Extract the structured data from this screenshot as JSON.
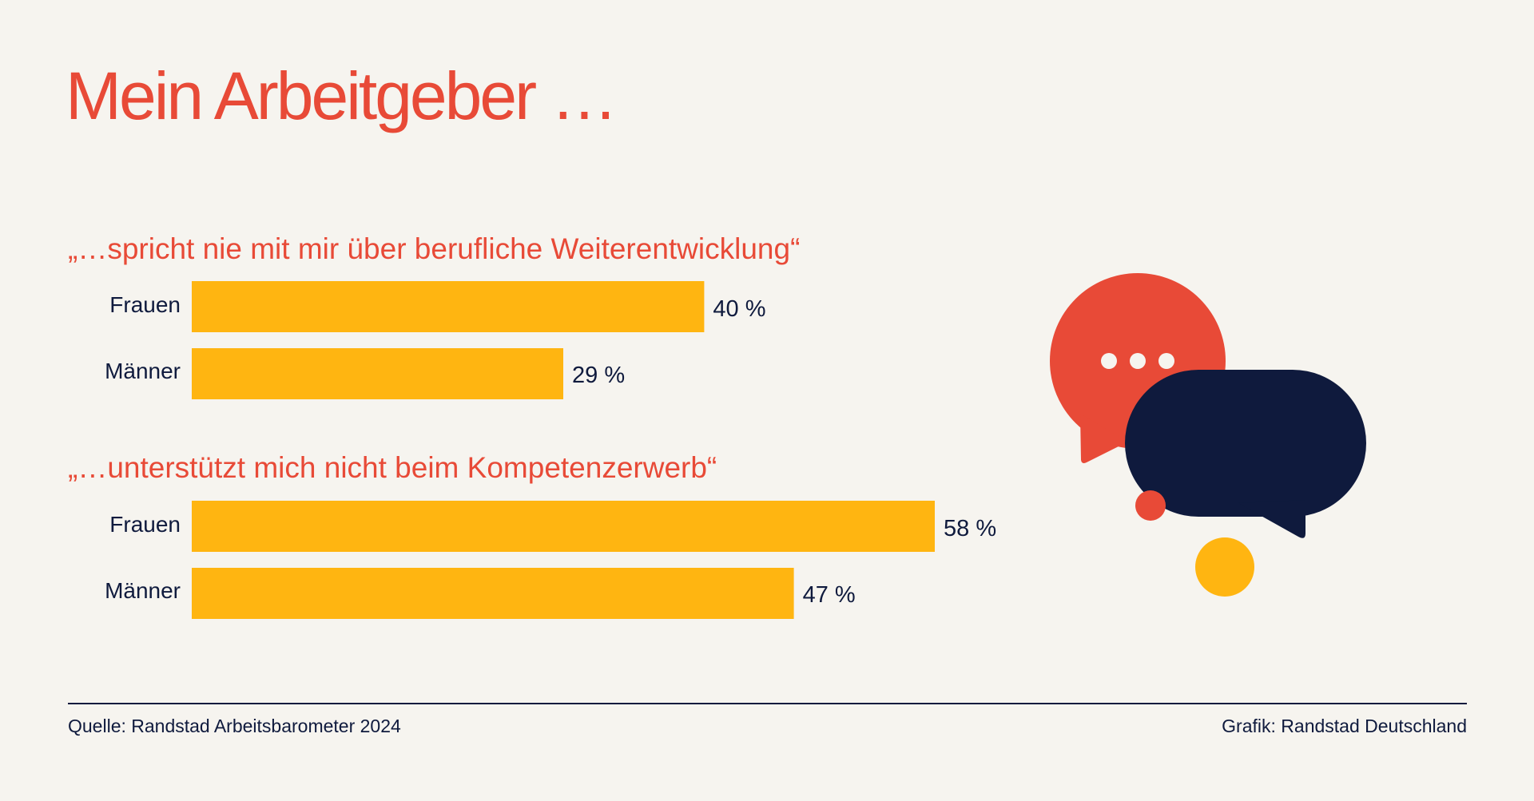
{
  "page": {
    "title": "Mein Arbeitgeber …",
    "source": "Quelle: Randstad Arbeitsbarometer 2024",
    "credit": "Grafik: Randstad Deutschland"
  },
  "colors": {
    "title": "#e84a37",
    "bar": "#ffb511",
    "text": "#0f1a3d",
    "background": "#f6f4ef"
  },
  "chart_data": [
    {
      "type": "bar",
      "orientation": "horizontal",
      "title": "„…spricht nie mit mir über berufliche Weiterentwicklung“",
      "categories": [
        "Frauen",
        "Männer"
      ],
      "values": [
        40,
        29
      ],
      "value_labels": [
        "40 %",
        "29 %"
      ],
      "unit": "%",
      "xlim": [
        0,
        58
      ]
    },
    {
      "type": "bar",
      "orientation": "horizontal",
      "title": "„…unterstützt mich nicht beim Kompetenzerwerb“",
      "categories": [
        "Frauen",
        "Männer"
      ],
      "values": [
        58,
        47
      ],
      "value_labels": [
        "58 %",
        "47 %"
      ],
      "unit": "%",
      "xlim": [
        0,
        58
      ]
    }
  ],
  "illustration": {
    "icon": "speech-bubbles-icon",
    "colors": [
      "#e84a37",
      "#0f1a3d",
      "#ffb511"
    ]
  }
}
